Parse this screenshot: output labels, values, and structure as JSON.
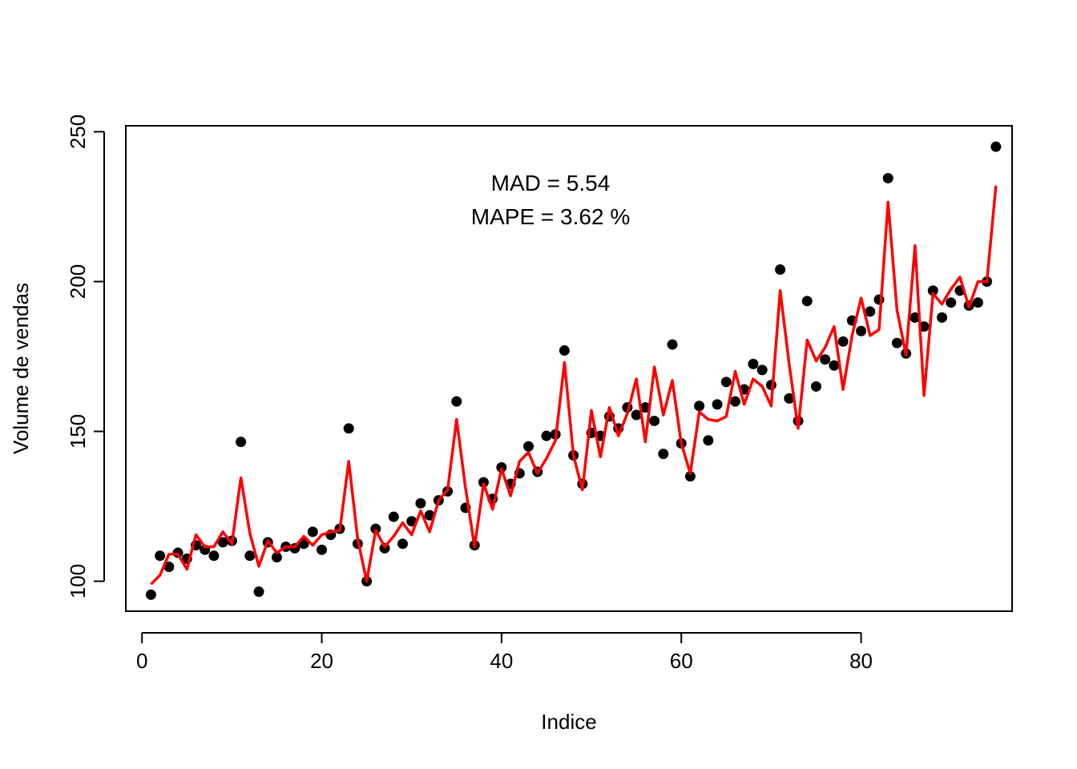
{
  "chart_data": {
    "type": "scatter",
    "xlabel": "Indice",
    "ylabel": "Volume de vendas",
    "xlim": [
      -1.8,
      96.8
    ],
    "ylim": [
      90,
      252
    ],
    "x_ticks": [
      0,
      20,
      40,
      60,
      80
    ],
    "y_ticks": [
      100,
      150,
      200,
      250
    ],
    "grid": false,
    "legend": "none",
    "annotations": [
      "MAD = 5.54",
      "MAPE = 3.62 %"
    ],
    "colors": {
      "points": "#000000",
      "fit_line": "#ff0000",
      "axis": "#000000"
    },
    "series": [
      {
        "kind": "points",
        "x": [
          1,
          2,
          3,
          4,
          5,
          6,
          7,
          8,
          9,
          10,
          11,
          12,
          13,
          14,
          15,
          16,
          17,
          18,
          19,
          20,
          21,
          22,
          23,
          24,
          25,
          26,
          27,
          28,
          29,
          30,
          31,
          32,
          33,
          34,
          35,
          36,
          37,
          38,
          39,
          40,
          41,
          42,
          43,
          44,
          45,
          46,
          47,
          48,
          49,
          50,
          51,
          52,
          53,
          54,
          55,
          56,
          57,
          58,
          59,
          60,
          61,
          62,
          63,
          64,
          65,
          66,
          67,
          68,
          69,
          70,
          71,
          72,
          73,
          74,
          75,
          76,
          77,
          78,
          79,
          80,
          81,
          82,
          83,
          84,
          85,
          86,
          87,
          88,
          89,
          90,
          91,
          92,
          93,
          94,
          95
        ],
        "y": [
          95.5,
          108.5,
          104.8,
          109.5,
          107.5,
          112,
          110.5,
          108.5,
          113,
          113.5,
          146.5,
          108.5,
          96.5,
          113,
          108,
          111.5,
          111,
          112.5,
          116.5,
          110.5,
          115.5,
          117.5,
          151,
          112.5,
          100,
          117.5,
          111,
          121.5,
          112.5,
          120,
          126,
          122,
          127,
          130,
          160,
          124.5,
          112,
          133,
          127.5,
          138,
          132.5,
          136,
          145,
          136.5,
          148.5,
          149,
          177,
          142,
          132.5,
          149.5,
          148.5,
          155,
          151,
          158,
          155.5,
          158,
          153.5,
          142.5,
          179,
          146,
          135,
          158.5,
          147,
          159,
          166.5,
          160,
          164,
          172.5,
          170.5,
          165.5,
          204,
          161,
          153.5,
          193.5,
          165,
          174,
          172,
          180,
          187,
          183.5,
          190,
          194,
          234.5,
          179.5,
          176,
          188,
          185,
          197,
          188,
          193,
          197,
          192,
          193,
          200,
          245
        ]
      },
      {
        "kind": "line",
        "x": [
          1,
          2,
          3,
          4,
          5,
          6,
          7,
          8,
          9,
          10,
          11,
          12,
          13,
          14,
          15,
          16,
          17,
          18,
          19,
          20,
          21,
          22,
          23,
          24,
          25,
          26,
          27,
          28,
          29,
          30,
          31,
          32,
          33,
          34,
          35,
          36,
          37,
          38,
          39,
          40,
          41,
          42,
          43,
          44,
          45,
          46,
          47,
          48,
          49,
          50,
          51,
          52,
          53,
          54,
          55,
          56,
          57,
          58,
          59,
          60,
          61,
          62,
          63,
          64,
          65,
          66,
          67,
          68,
          69,
          70,
          71,
          72,
          73,
          74,
          75,
          76,
          77,
          78,
          79,
          80,
          81,
          82,
          83,
          84,
          85,
          86,
          87,
          88,
          89,
          90,
          91,
          92,
          93,
          94,
          95
        ],
        "y": [
          99,
          102,
          109,
          109,
          104,
          115.5,
          111.5,
          111.5,
          116.5,
          112.5,
          134.5,
          116,
          105,
          113.5,
          109.5,
          111.5,
          111.5,
          115,
          112,
          115.5,
          116.5,
          117,
          140,
          114,
          100,
          117,
          111.5,
          115,
          119.5,
          115.5,
          123.5,
          116.5,
          127,
          130.5,
          154,
          131,
          111.5,
          132.5,
          124,
          137.5,
          128.5,
          140,
          143,
          136,
          141,
          147,
          173,
          142,
          130.5,
          157,
          141.5,
          158,
          148.5,
          156,
          167.5,
          146.5,
          171.5,
          155.5,
          167,
          146,
          136,
          156.5,
          154,
          153.5,
          155,
          170,
          159,
          167.5,
          165,
          158.5,
          197,
          172.5,
          151,
          180.5,
          173.5,
          178,
          185,
          164,
          182,
          194.5,
          182,
          184,
          226.5,
          190.5,
          175.5,
          212,
          162,
          196,
          192.5,
          197.5,
          201.5,
          191.5,
          200,
          200,
          232
        ]
      }
    ]
  }
}
